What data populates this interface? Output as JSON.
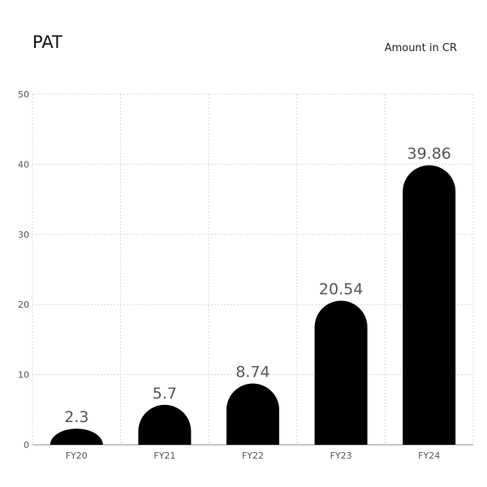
{
  "header": {
    "title": "PAT",
    "unit_note": "Amount in CR"
  },
  "chart_data": {
    "type": "bar",
    "title": "PAT",
    "subtitle": "Amount in CR",
    "categories": [
      "FY20",
      "FY21",
      "FY22",
      "FY23",
      "FY24"
    ],
    "values": [
      2.3,
      5.7,
      8.74,
      20.54,
      39.86
    ],
    "data_labels": [
      "2.3",
      "5.7",
      "8.74",
      "20.54",
      "39.86"
    ],
    "y_ticks": [
      0,
      10,
      20,
      30,
      40,
      50
    ],
    "ylim": [
      0,
      50
    ],
    "xlabel": "",
    "ylabel": "",
    "grid": true,
    "bar_color": "#000000",
    "grid_color": "#d9d9d9",
    "axis_color": "#888888"
  }
}
